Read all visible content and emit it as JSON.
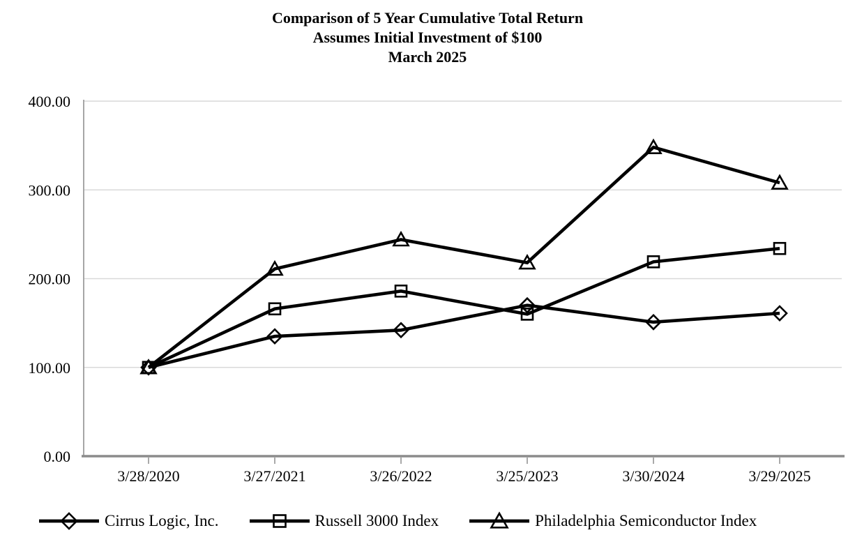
{
  "title": {
    "line1": "Comparison of 5 Year Cumulative Total Return",
    "line2": "Assumes Initial Investment of $100",
    "line3": "March 2025"
  },
  "chart_data": {
    "type": "line",
    "title": "Comparison of 5 Year Cumulative Total Return",
    "subtitle": "Assumes Initial Investment of $100",
    "period_label": "March 2025",
    "categories": [
      "3/28/2020",
      "3/27/2021",
      "3/26/2022",
      "3/25/2023",
      "3/30/2024",
      "3/29/2025"
    ],
    "series": [
      {
        "name": "Cirrus Logic, Inc.",
        "marker": "diamond",
        "values": [
          100.0,
          135,
          142,
          170,
          151,
          161
        ]
      },
      {
        "name": "Russell 3000 Index",
        "marker": "square",
        "values": [
          100.0,
          166,
          186,
          160,
          219,
          234
        ]
      },
      {
        "name": "Philadelphia Semiconductor Index",
        "marker": "triangle",
        "values": [
          100.0,
          211,
          244,
          218,
          348,
          308
        ]
      }
    ],
    "y_axis": {
      "min": 0,
      "max": 400,
      "step": 100,
      "tick_labels": [
        "400.00",
        "300.00",
        "200.00",
        "100.00",
        "0.00"
      ]
    },
    "x_axis": {
      "tick_labels": [
        "3/28/2020",
        "3/27/2021",
        "3/26/2022",
        "3/25/2023",
        "3/30/2024",
        "3/29/2025"
      ]
    },
    "grid": true,
    "legend_position": "bottom",
    "colors": {
      "line": "#000000",
      "marker_stroke": "#000000",
      "gridline": "#d9d9d9",
      "axis_left": "#a6a6a6",
      "axis_bottom": "#8c8c8c",
      "text": "#000000"
    }
  }
}
